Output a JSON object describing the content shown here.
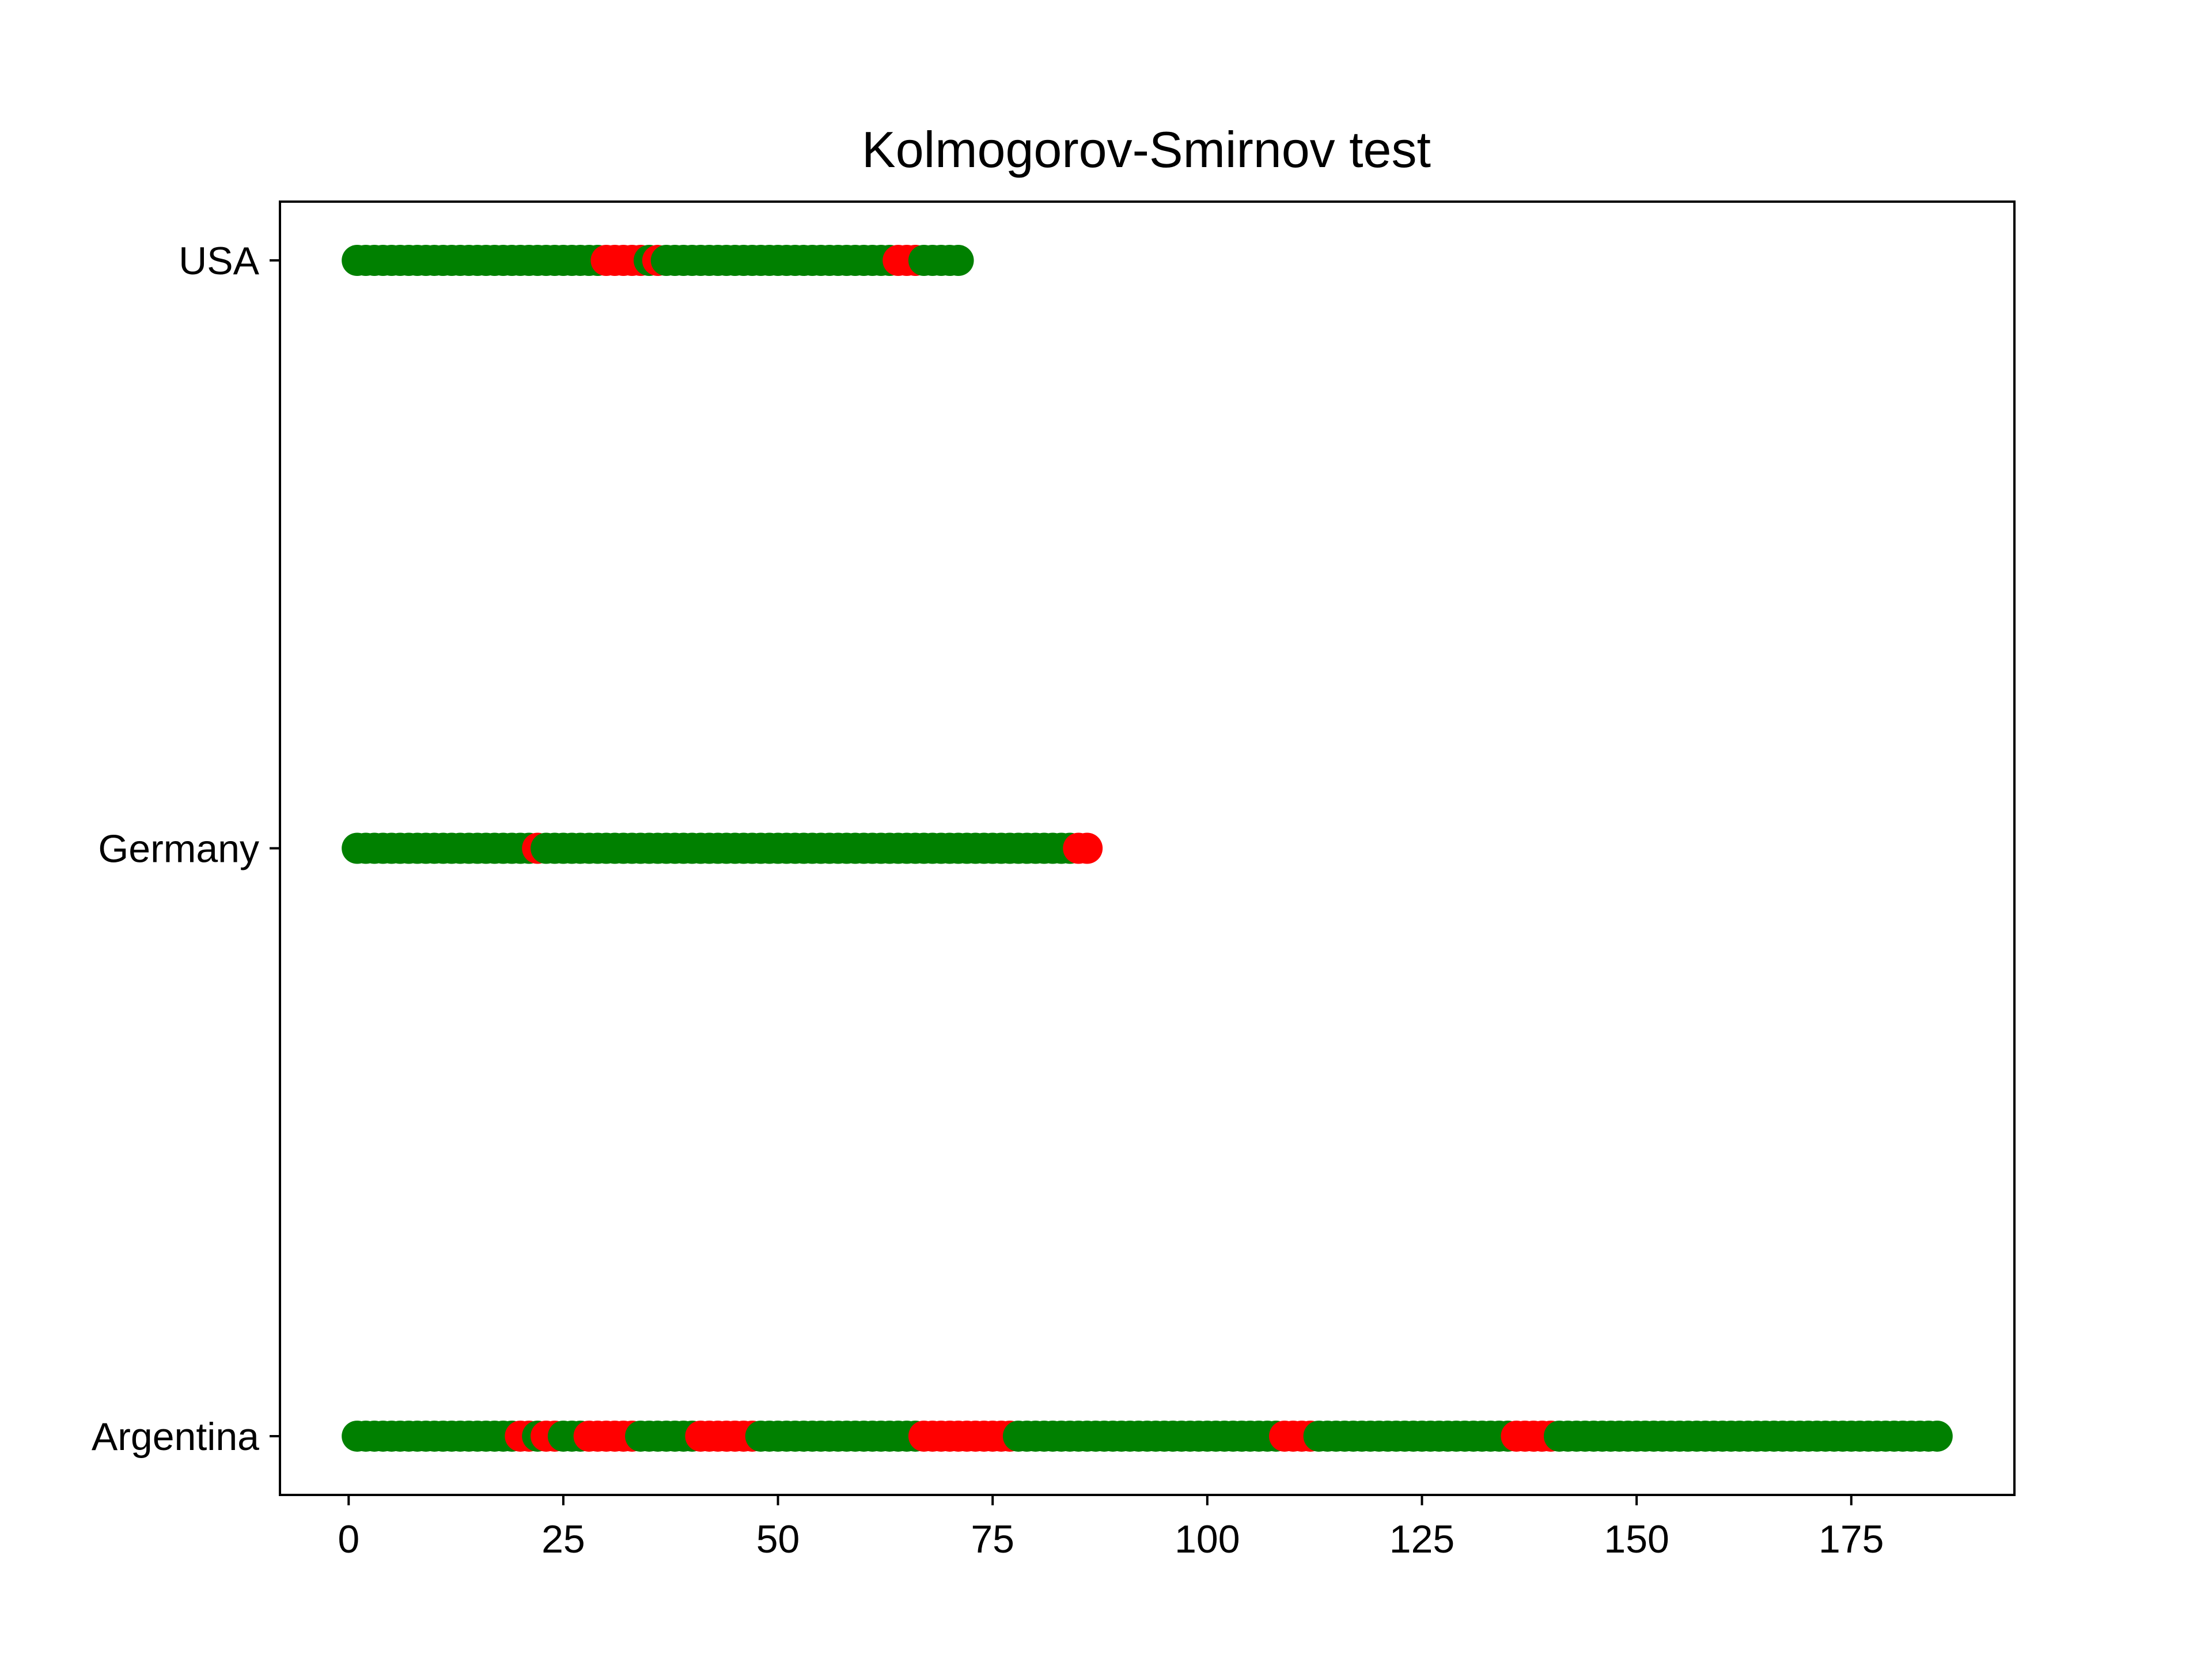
{
  "chart_data": {
    "type": "scatter",
    "title": "Kolmogorov-Smirnov test",
    "xlabel": "",
    "ylabel": "",
    "xlim": [
      -8,
      194
    ],
    "xticks": [
      0,
      25,
      50,
      75,
      100,
      125,
      150,
      175
    ],
    "categories": [
      "Argentina",
      "Germany",
      "USA"
    ],
    "grid": false,
    "legend": "none",
    "colors": {
      "pass": "#008000",
      "fail": "#ff0000"
    },
    "series": [
      {
        "category": "Argentina",
        "x_min": 1,
        "x_max": 185,
        "fail_ranges": [
          [
            20,
            21
          ],
          [
            23,
            24
          ],
          [
            28,
            33
          ],
          [
            41,
            47
          ],
          [
            67,
            77
          ],
          [
            109,
            112
          ],
          [
            136,
            140
          ]
        ]
      },
      {
        "category": "Germany",
        "x_min": 1,
        "x_max": 86,
        "fail_ranges": [
          [
            22,
            22
          ],
          [
            85,
            86
          ]
        ]
      },
      {
        "category": "USA",
        "x_min": 1,
        "x_max": 71,
        "fail_ranges": [
          [
            30,
            34
          ],
          [
            36,
            36
          ],
          [
            64,
            66
          ]
        ]
      }
    ]
  }
}
